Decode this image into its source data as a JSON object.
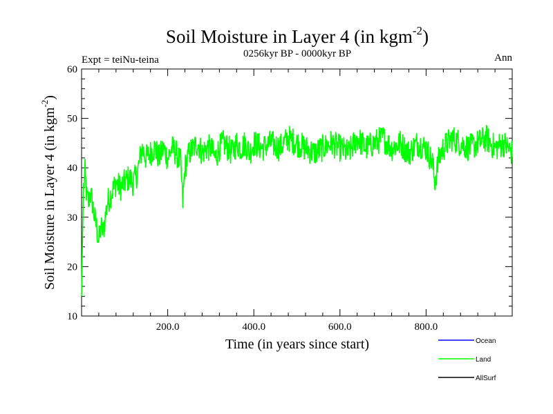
{
  "chart_data": {
    "type": "line",
    "title": "Soil Moisture in Layer 4 (in kgm",
    "title_sup": "-2",
    "title_close": ")",
    "subtitle": "0256kyr BP - 0000kyr BP",
    "left_label": "Expt = teiNu-teina",
    "right_label": "Ann",
    "xlabel": "Time (in years since start)",
    "ylabel": "Soil Moisture in Layer 4 (in kgm",
    "ylabel_sup": "-2",
    "ylabel_close": ")",
    "xlim": [
      0,
      1000
    ],
    "ylim": [
      10,
      60
    ],
    "x_ticks": [
      200,
      400,
      600,
      800
    ],
    "x_tick_labels": [
      "200.0",
      "400.0",
      "600.0",
      "800.0"
    ],
    "y_ticks": [
      10,
      20,
      30,
      40,
      50,
      60
    ],
    "y_tick_labels": [
      "10",
      "20",
      "30",
      "40",
      "50",
      "60"
    ],
    "legend": [
      {
        "name": "Ocean",
        "color": "#0000ff"
      },
      {
        "name": "Land",
        "color": "#00ff00"
      },
      {
        "name": "AllSurf",
        "color": "#000000"
      }
    ],
    "series": [
      {
        "name": "Land",
        "color": "#00ff00",
        "x": [
          0,
          4,
          8,
          12,
          16,
          20,
          25,
          30,
          35,
          40,
          45,
          50,
          60,
          70,
          80,
          90,
          100,
          110,
          120,
          130,
          140,
          150,
          160,
          170,
          180,
          190,
          200,
          210,
          220,
          230,
          235,
          240,
          250,
          260,
          270,
          280,
          290,
          300,
          310,
          320,
          330,
          340,
          350,
          360,
          370,
          380,
          390,
          400,
          420,
          440,
          460,
          480,
          500,
          520,
          540,
          560,
          580,
          600,
          620,
          640,
          660,
          680,
          700,
          720,
          740,
          760,
          780,
          800,
          815,
          820,
          830,
          840,
          860,
          880,
          900,
          920,
          940,
          960,
          980,
          1000
        ],
        "values": [
          14,
          35,
          39,
          34,
          33,
          35,
          33,
          30,
          28,
          25,
          28,
          27,
          33,
          35,
          37,
          36,
          37,
          38,
          37,
          39,
          44,
          42,
          43,
          44,
          42,
          44,
          42,
          44,
          43,
          41,
          33,
          40,
          43,
          44,
          45,
          43,
          44,
          44,
          42,
          44,
          45,
          44,
          43,
          45,
          44,
          45,
          43,
          45,
          44,
          45,
          44,
          46,
          45,
          44,
          43,
          44,
          45,
          44,
          43,
          46,
          44,
          45,
          46,
          44,
          45,
          43,
          45,
          44,
          41,
          37,
          42,
          44,
          46,
          45,
          44,
          45,
          46,
          44,
          45,
          43
        ]
      }
    ]
  }
}
